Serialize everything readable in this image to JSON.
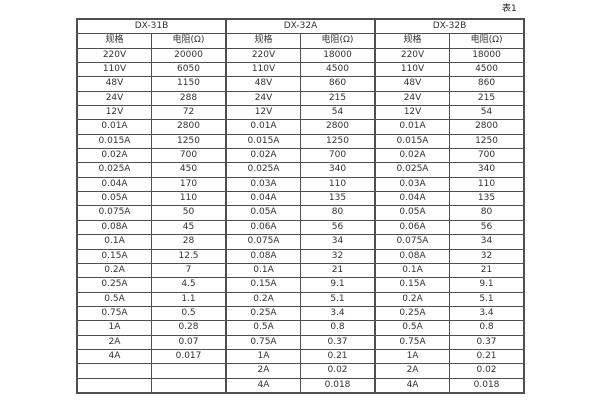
{
  "page": {
    "caption": "表1"
  },
  "table": {
    "groups": [
      {
        "name": "DX-31B"
      },
      {
        "name": "DX-32A"
      },
      {
        "name": "DX-32B"
      }
    ],
    "sub_headers": {
      "spec": "规格",
      "resistance": "电阻(Ω)"
    },
    "rows": [
      [
        "220V",
        "20000",
        "220V",
        "18000",
        "220V",
        "18000"
      ],
      [
        "110V",
        "6050",
        "110V",
        "4500",
        "110V",
        "4500"
      ],
      [
        "48V",
        "1150",
        "48V",
        "860",
        "48V",
        "860"
      ],
      [
        "24V",
        "288",
        "24V",
        "215",
        "24V",
        "215"
      ],
      [
        "12V",
        "72",
        "12V",
        "54",
        "12V",
        "54"
      ],
      [
        "0.01A",
        "2800",
        "0.01A",
        "2800",
        "0.01A",
        "2800"
      ],
      [
        "0.015A",
        "1250",
        "0.015A",
        "1250",
        "0.015A",
        "1250"
      ],
      [
        "0.02A",
        "700",
        "0.02A",
        "700",
        "0.02A",
        "700"
      ],
      [
        "0.025A",
        "450",
        "0.025A",
        "340",
        "0.025A",
        "340"
      ],
      [
        "0.04A",
        "170",
        "0.03A",
        "110",
        "0.03A",
        "110"
      ],
      [
        "0.05A",
        "110",
        "0.04A",
        "135",
        "0.04A",
        "135"
      ],
      [
        "0.075A",
        "50",
        "0.05A",
        "80",
        "0.05A",
        "80"
      ],
      [
        "0.08A",
        "45",
        "0.06A",
        "56",
        "0.06A",
        "56"
      ],
      [
        "0.1A",
        "28",
        "0.075A",
        "34",
        "0.075A",
        "34"
      ],
      [
        "0.15A",
        "12.5",
        "0.08A",
        "32",
        "0.08A",
        "32"
      ],
      [
        "0.2A",
        "7",
        "0.1A",
        "21",
        "0.1A",
        "21"
      ],
      [
        "0.25A",
        "4.5",
        "0.15A",
        "9.1",
        "0.15A",
        "9.1"
      ],
      [
        "0.5A",
        "1.1",
        "0.2A",
        "5.1",
        "0.2A",
        "5.1"
      ],
      [
        "0.75A",
        "0.5",
        "0.25A",
        "3.4",
        "0.25A",
        "3.4"
      ],
      [
        "1A",
        "0.28",
        "0.5A",
        "0.8",
        "0.5A",
        "0.8"
      ],
      [
        "2A",
        "0.07",
        "0.75A",
        "0.37",
        "0.75A",
        "0.37"
      ],
      [
        "4A",
        "0.017",
        "1A",
        "0.21",
        "1A",
        "0.21"
      ],
      [
        "",
        "",
        "2A",
        "0.02",
        "2A",
        "0.02"
      ],
      [
        "",
        "",
        "4A",
        "0.018",
        "4A",
        "0.018"
      ]
    ]
  },
  "colors": {
    "border": "#4f4f4f",
    "text": "#333333",
    "background": "#ffffff"
  }
}
